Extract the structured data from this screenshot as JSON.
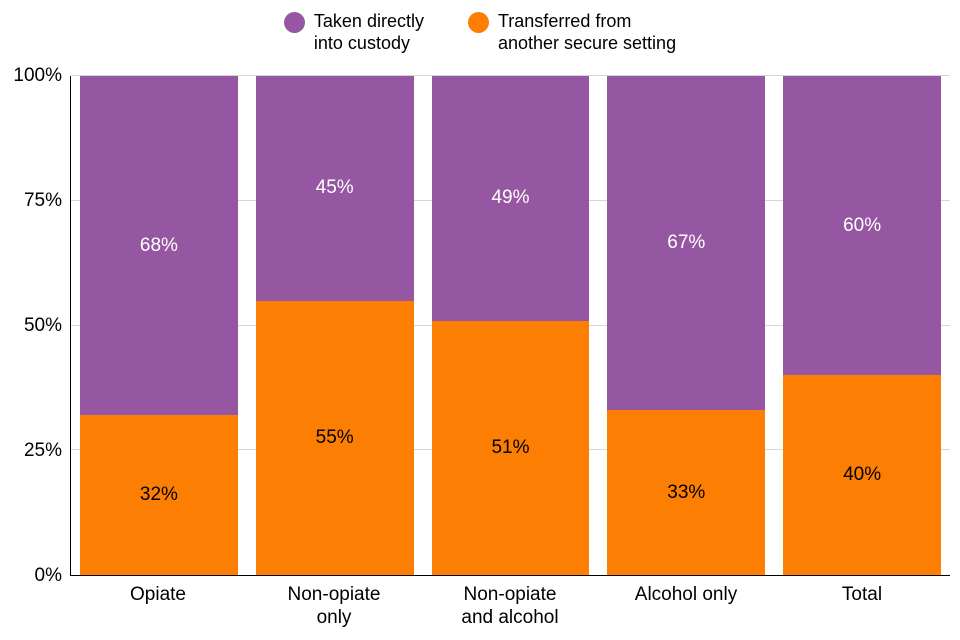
{
  "legend": {
    "items": [
      {
        "label": "Taken directly\ninto custody"
      },
      {
        "label": "Transferred from\nanother secure setting"
      }
    ]
  },
  "chart_data": {
    "type": "bar",
    "stacked": true,
    "title": "",
    "xlabel": "",
    "ylabel": "",
    "categories": [
      "Opiate",
      "Non-opiate only",
      "Non-opiate and alcohol",
      "Alcohol only",
      "Total"
    ],
    "category_labels": [
      "Opiate",
      "Non-opiate\nonly",
      "Non-opiate\nand alcohol",
      "Alcohol only",
      "Total"
    ],
    "series": [
      {
        "name": "Taken directly into custody",
        "color": "#9657a2",
        "label_color": "#ffffff",
        "values": [
          68,
          45,
          49,
          67,
          60
        ]
      },
      {
        "name": "Transferred from another secure setting",
        "color": "#fc7f03",
        "label_color": "#000000",
        "values": [
          32,
          55,
          51,
          33,
          40
        ]
      }
    ],
    "value_unit": "%",
    "yticks": [
      0,
      25,
      75,
      50,
      100
    ],
    "ytick_order": [
      0,
      25,
      50,
      75,
      100
    ],
    "ylim": [
      0,
      100
    ],
    "grid": true,
    "gridline_color": "#d6d6d6",
    "legend_position": "top"
  }
}
